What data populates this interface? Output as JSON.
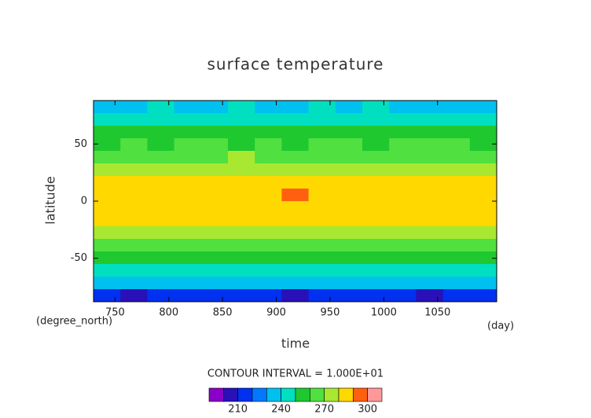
{
  "chart_data": {
    "type": "contour",
    "title": "surface temperature",
    "x_label": "time",
    "y_label": "latitude",
    "x_units": "(day)",
    "y_units": "(degree_north)",
    "annotation": "CONTOUR INTERVAL = 1.000E+01",
    "xlim": [
      730,
      1105
    ],
    "ylim": [
      -88,
      88
    ],
    "xticks": [
      750,
      800,
      850,
      900,
      950,
      1000,
      1050
    ],
    "yticks": [
      -50,
      0,
      50
    ],
    "x": [
      742.5,
      767.5,
      792.5,
      817.5,
      842.5,
      867.5,
      892.5,
      917.5,
      942.5,
      967.5,
      992.5,
      1017.5,
      1042.5,
      1067.5,
      1092.5
    ],
    "y": [
      82.5,
      71.5,
      60.5,
      49.5,
      38.5,
      27.5,
      16.5,
      5.5,
      -5.5,
      -16.5,
      -27.5,
      -38.5,
      -49.5,
      -60.5,
      -71.5,
      -82.5
    ],
    "z": [
      [
        238,
        236,
        241,
        234,
        239,
        243,
        237,
        235,
        240,
        236,
        242,
        238,
        233,
        239,
        237
      ],
      [
        246,
        244,
        248,
        243,
        247,
        245,
        249,
        244,
        246,
        243,
        248,
        245,
        247,
        244,
        246
      ],
      [
        253,
        252,
        255,
        251,
        254,
        252,
        256,
        253,
        251,
        254,
        252,
        255,
        253,
        252,
        254
      ],
      [
        259,
        261,
        258,
        260,
        262,
        259,
        261,
        258,
        263,
        260,
        259,
        261,
        260,
        262,
        259
      ],
      [
        268,
        267,
        269,
        266,
        268,
        270,
        267,
        265,
        269,
        268,
        266,
        269,
        268,
        267,
        269
      ],
      [
        276,
        277,
        275,
        276,
        278,
        275,
        277,
        274,
        276,
        278,
        275,
        277,
        276,
        275,
        277
      ],
      [
        283,
        284,
        282,
        283,
        284,
        281,
        282,
        280,
        283,
        284,
        283,
        282,
        284,
        283,
        284
      ],
      [
        286,
        287,
        286,
        285,
        287,
        285,
        284,
        293,
        285,
        285,
        286,
        287,
        286,
        287,
        286
      ],
      [
        286,
        286,
        287,
        285,
        286,
        284,
        283,
        284,
        286,
        285,
        287,
        286,
        287,
        286,
        286
      ],
      [
        283,
        282,
        284,
        283,
        282,
        281,
        280,
        281,
        283,
        282,
        284,
        283,
        282,
        284,
        283
      ],
      [
        275,
        276,
        274,
        275,
        276,
        273,
        272,
        274,
        275,
        276,
        274,
        275,
        276,
        275,
        274
      ],
      [
        267,
        266,
        268,
        266,
        265,
        264,
        266,
        265,
        267,
        266,
        268,
        267,
        266,
        265,
        267
      ],
      [
        258,
        257,
        259,
        256,
        257,
        255,
        254,
        256,
        258,
        257,
        259,
        258,
        256,
        257,
        258
      ],
      [
        248,
        247,
        249,
        246,
        245,
        244,
        246,
        243,
        247,
        248,
        246,
        247,
        245,
        248,
        247
      ],
      [
        234,
        236,
        233,
        232,
        235,
        231,
        233,
        230,
        234,
        236,
        232,
        235,
        233,
        234,
        232
      ],
      [
        212,
        208,
        215,
        214,
        210,
        216,
        213,
        209,
        214,
        211,
        215,
        213,
        207,
        212,
        214
      ]
    ],
    "levels": [
      190,
      200,
      210,
      220,
      230,
      240,
      250,
      260,
      270,
      280,
      290,
      300,
      310
    ],
    "colors": [
      "#8a00c8",
      "#2a10b8",
      "#0030f0",
      "#0078ff",
      "#00c0f0",
      "#00e0c0",
      "#20c830",
      "#50e040",
      "#a8e830",
      "#ffd800",
      "#ff6010",
      "#ff9898"
    ],
    "colorbar_ticks": [
      210,
      240,
      270,
      300
    ]
  }
}
